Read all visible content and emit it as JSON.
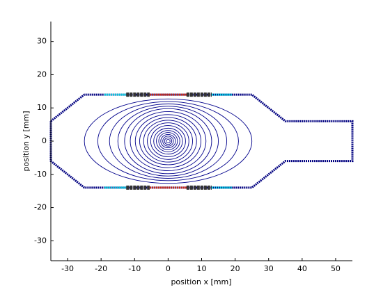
{
  "chart_data": {
    "type": "contour",
    "xlabel": "position x [mm]",
    "ylabel": "position y [mm]",
    "xlim": [
      -35,
      55
    ],
    "ylim": [
      -36,
      36
    ],
    "xticks": [
      -30,
      -20,
      -10,
      0,
      10,
      20,
      30,
      40,
      50
    ],
    "yticks": [
      -30,
      -20,
      -10,
      0,
      10,
      20,
      30
    ],
    "boundary": {
      "color": "#000080",
      "x": [
        -35,
        -25,
        25,
        35,
        55,
        55,
        35,
        25,
        -25,
        -35,
        -35
      ],
      "y": [
        6,
        14,
        14,
        6,
        6,
        -6,
        -6,
        -14,
        -14,
        -6,
        6
      ]
    },
    "contours": {
      "color": "#00008b",
      "rx": [
        25,
        21,
        17.5,
        15,
        13,
        11.3,
        9.8,
        8.5,
        7.3,
        6.2,
        5.2,
        4.3,
        3.5,
        2.8,
        2.2,
        1.6,
        1.1,
        0.6
      ],
      "ry": [
        12.7,
        11.9,
        11.2,
        10.5,
        9.8,
        8.9,
        8,
        7.1,
        6.3,
        5.5,
        4.7,
        3.9,
        3.2,
        2.6,
        2,
        1.5,
        1,
        0.5
      ]
    },
    "segments": [
      {
        "color": "#00c8dc",
        "x": [
          -19,
          -12.5
        ],
        "y": [
          14,
          14
        ]
      },
      {
        "color": "#333333",
        "x": [
          -12.5,
          -5.5
        ],
        "y": [
          14,
          14
        ]
      },
      {
        "color": "#c82814",
        "x": [
          -5.5,
          5.5
        ],
        "y": [
          14,
          14
        ]
      },
      {
        "color": "#333333",
        "x": [
          5.5,
          13
        ],
        "y": [
          14,
          14
        ]
      },
      {
        "color": "#00c8dc",
        "x": [
          13,
          19
        ],
        "y": [
          14,
          14
        ]
      },
      {
        "color": "#00c8dc",
        "x": [
          -19,
          -12.5
        ],
        "y": [
          -14,
          -14
        ]
      },
      {
        "color": "#333333",
        "x": [
          -12.5,
          -5.5
        ],
        "y": [
          -14,
          -14
        ]
      },
      {
        "color": "#c82814",
        "x": [
          -5.5,
          5.5
        ],
        "y": [
          -14,
          -14
        ]
      },
      {
        "color": "#333333",
        "x": [
          5.5,
          13
        ],
        "y": [
          -14,
          -14
        ]
      },
      {
        "color": "#00c8dc",
        "x": [
          13,
          19
        ],
        "y": [
          -14,
          -14
        ]
      }
    ]
  }
}
